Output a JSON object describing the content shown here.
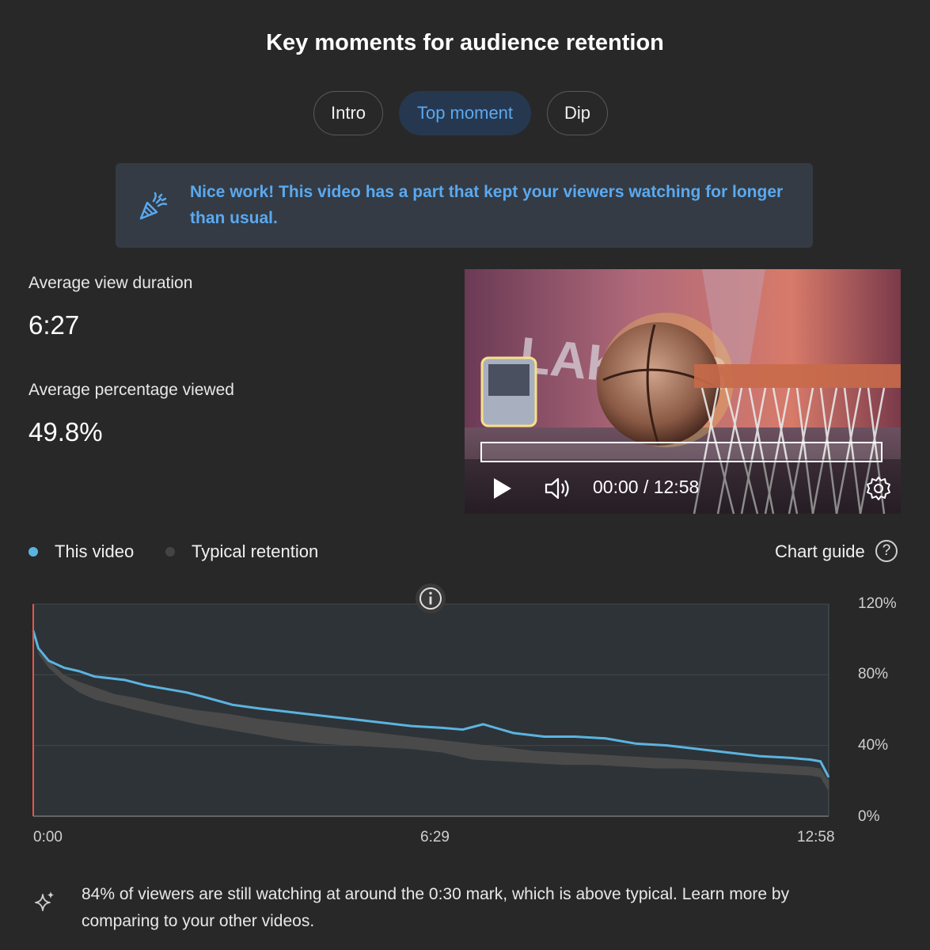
{
  "page": {
    "title": "Key moments for audience retention"
  },
  "tabs": [
    {
      "label": "Intro",
      "active": false
    },
    {
      "label": "Top moment",
      "active": true
    },
    {
      "label": "Dip",
      "active": false
    }
  ],
  "banner": {
    "icon": "party-popper-icon",
    "text": "Nice work! This video has a part that kept your viewers watching for longer than usual."
  },
  "metrics": {
    "avg_view_duration": {
      "label": "Average view duration",
      "value": "6:27"
    },
    "avg_percentage_viewed": {
      "label": "Average percentage viewed",
      "value": "49.8%"
    }
  },
  "player": {
    "time": "00:00 / 12:58",
    "thumbnail_text": "LAKERS",
    "icons": {
      "play": "play-icon",
      "volume": "volume-icon",
      "settings": "gear-icon"
    }
  },
  "legend": {
    "this_video": "This video",
    "typical": "Typical retention",
    "chart_guide": "Chart guide"
  },
  "colors": {
    "accent": "#5aa9f0",
    "this_video": "#5bb4e0",
    "typical_band": "#4a4a4a",
    "start_marker": "#e4574b"
  },
  "chart_data": {
    "type": "line",
    "x_ticks": [
      "0:00",
      "6:29",
      "12:58"
    ],
    "y_ticks": [
      "0%",
      "40%",
      "80%",
      "120%"
    ],
    "ylim": [
      0,
      120
    ],
    "xlim": [
      0,
      778
    ],
    "grid": true,
    "legend_position": "top-left",
    "series": [
      {
        "name": "This video",
        "x": [
          0,
          5,
          15,
          30,
          45,
          60,
          75,
          90,
          110,
          130,
          150,
          170,
          195,
          220,
          250,
          280,
          310,
          340,
          370,
          400,
          420,
          440,
          470,
          500,
          530,
          560,
          590,
          620,
          650,
          680,
          710,
          740,
          760,
          770,
          778
        ],
        "y": [
          105,
          95,
          88,
          84,
          82,
          79,
          78,
          77,
          74,
          72,
          70,
          67,
          63,
          61,
          59,
          57,
          55,
          53,
          51,
          50,
          49,
          52,
          47,
          45,
          45,
          44,
          41,
          40,
          38,
          36,
          34,
          33,
          32,
          31,
          22
        ]
      },
      {
        "name": "Typical retention",
        "x": [
          0,
          5,
          15,
          30,
          45,
          60,
          80,
          100,
          130,
          160,
          190,
          220,
          250,
          280,
          310,
          340,
          370,
          400,
          430,
          460,
          490,
          520,
          550,
          580,
          610,
          640,
          670,
          700,
          730,
          760,
          770,
          778
        ],
        "y_low": [
          105,
          92,
          84,
          76,
          70,
          66,
          63,
          60,
          56,
          52,
          49,
          46,
          43,
          41,
          40,
          39,
          38,
          36,
          32,
          31,
          30,
          29,
          29,
          28,
          27,
          27,
          26,
          25,
          24,
          23,
          22,
          14
        ],
        "y_high": [
          105,
          93,
          88,
          80,
          76,
          73,
          69,
          67,
          63,
          60,
          58,
          55,
          53,
          51,
          49,
          47,
          45,
          43,
          41,
          39,
          37,
          36,
          35,
          34,
          33,
          32,
          31,
          30,
          29,
          28,
          27,
          20
        ]
      }
    ]
  },
  "insight": {
    "icon": "sparkle-icon",
    "text": "84% of viewers are still watching at around the 0:30 mark, which is above typical. Learn more by comparing to your other videos."
  }
}
